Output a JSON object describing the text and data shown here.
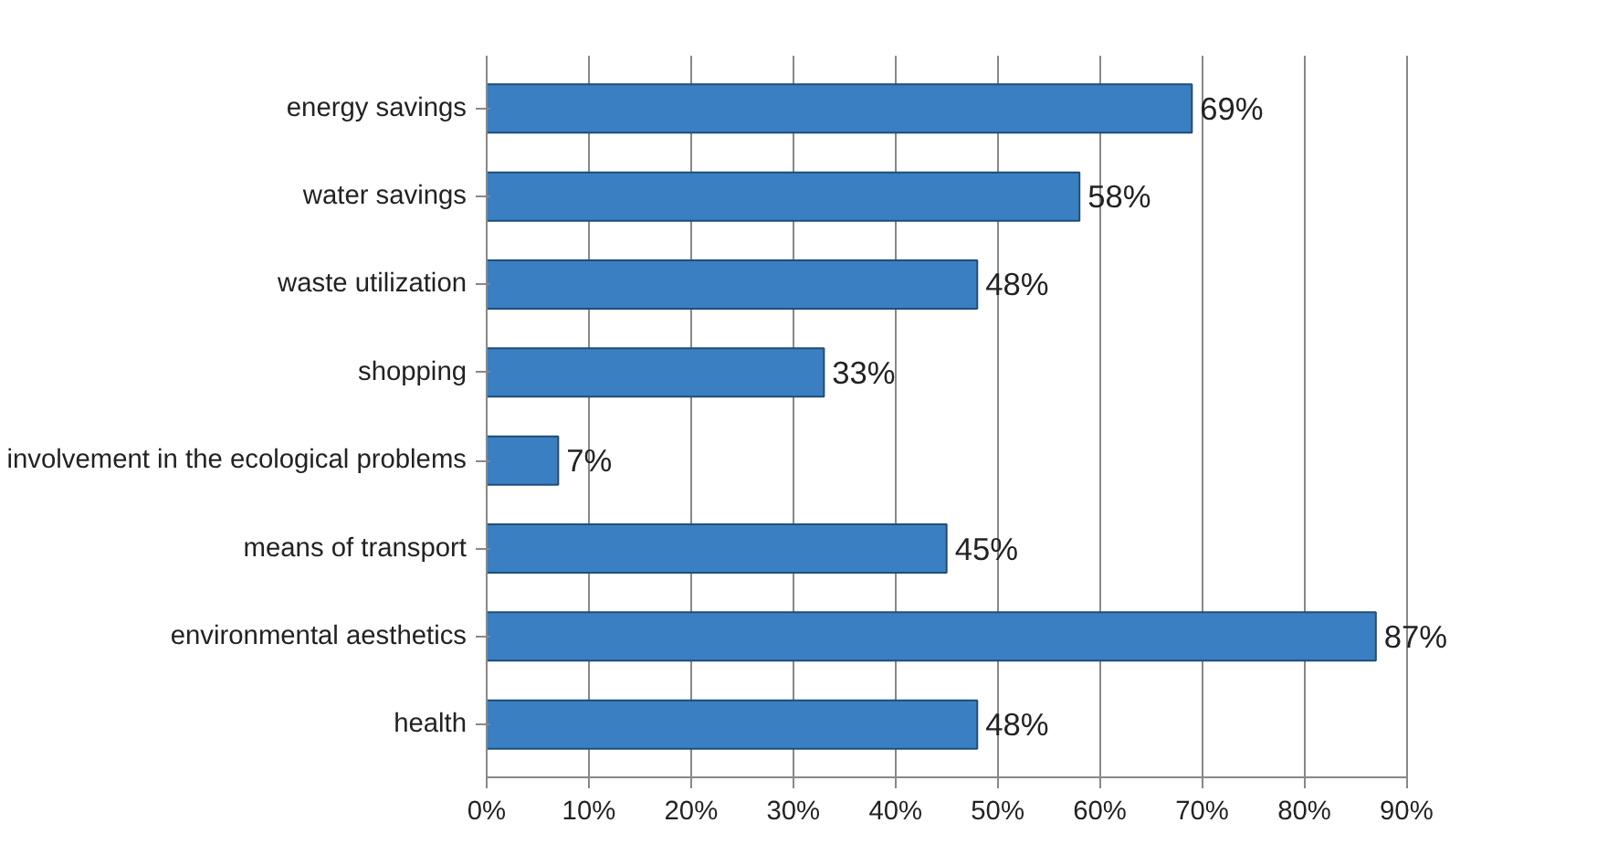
{
  "chart_data": {
    "type": "bar",
    "orientation": "horizontal",
    "categories": [
      "energy savings",
      "water savings",
      "waste utilization",
      "shopping",
      "involvement in the ecological problems",
      "means of transport",
      "environmental aesthetics",
      "health"
    ],
    "values": [
      69,
      58,
      48,
      33,
      7,
      45,
      87,
      48
    ],
    "value_labels": [
      "69%",
      "58%",
      "48%",
      "33%",
      "7%",
      "45%",
      "87%",
      "48%"
    ],
    "color": "#3a7fc1",
    "xlim": [
      0,
      90
    ],
    "xticks": [
      {
        "value": 0,
        "label": "0%"
      },
      {
        "value": 10,
        "label": "10%"
      },
      {
        "value": 20,
        "label": "20%"
      },
      {
        "value": 30,
        "label": "30%"
      },
      {
        "value": 40,
        "label": "40%"
      },
      {
        "value": 50,
        "label": "50%"
      },
      {
        "value": 60,
        "label": "60%"
      },
      {
        "value": 70,
        "label": "70%"
      },
      {
        "value": 80,
        "label": "80%"
      },
      {
        "value": 90,
        "label": "90%"
      }
    ],
    "grid": "x"
  }
}
